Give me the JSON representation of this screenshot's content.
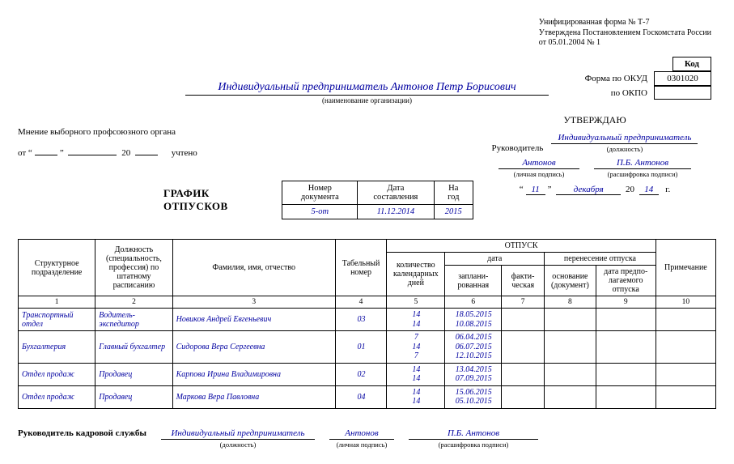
{
  "form_header": {
    "line1": "Унифицированная форма № Т-7",
    "line2": "Утверждена Постановлением Госкомстата России",
    "line3": "от 05.01.2004 № 1"
  },
  "codes": {
    "header": "Код",
    "okud_label": "Форма по ОКУД",
    "okud_value": "0301020",
    "okpo_label": "по ОКПО",
    "okpo_value": ""
  },
  "org": {
    "name": "Индивидуальный предприниматель Антонов Петр Борисович",
    "sub": "(наименование организации)"
  },
  "mnenie": {
    "header": "Мнение выборного профсоюзного органа",
    "ot": "от",
    "twenty": "20",
    "uchteno": "учтено"
  },
  "approve": {
    "title": "УТВЕРЖДАЮ",
    "leader_label": "Руководитель",
    "position": "Индивидуальный предприниматель",
    "position_sub": "(должность)",
    "surname": "Антонов",
    "surname_sub": "(личная подпись)",
    "name": "П.Б. Антонов",
    "name_sub": "(расшифровка подписи)",
    "day": "11",
    "month": "декабря",
    "year_prefix": "20",
    "year": "14",
    "g": "г."
  },
  "doc": {
    "title": "ГРАФИК ОТПУСКОВ",
    "num_header": "Номер документа",
    "date_header": "Дата составления",
    "year_header": "На год",
    "num_value": "5-от",
    "date_value": "11.12.2014",
    "year_value": "2015"
  },
  "table": {
    "headers": {
      "dept": "Структурное подразделение",
      "position": "Должность (специальность, профессия) по штатному расписанию",
      "fio": "Фамилия, имя, отчество",
      "tabnum": "Табельный номер",
      "vacation": "ОТПУСК",
      "days": "количество календарных дней",
      "date": "дата",
      "planned": "заплани-рованная",
      "actual": "факти-ческая",
      "transfer": "перенесение отпуска",
      "basis": "основание (документ)",
      "newdate": "дата предпо-лагаемого отпуска",
      "note": "Примечание"
    },
    "rows": [
      {
        "dept": "Транспортный отдел",
        "position": "Водитель-экспедитор",
        "fio": "Новиков Андрей Евгеньевич",
        "tabnum": "03",
        "days": [
          "14",
          "14"
        ],
        "dates": [
          "18.05.2015",
          "10.08.2015"
        ]
      },
      {
        "dept": "Бухгалтерия",
        "position": "Главный бухгалтер",
        "fio": "Сидорова Вера Сергеевна",
        "tabnum": "01",
        "days": [
          "7",
          "14",
          "7"
        ],
        "dates": [
          "06.04.2015",
          "06.07.2015",
          "12.10.2015"
        ]
      },
      {
        "dept": "Отдел продаж",
        "position": "Продавец",
        "fio": "Карпова Ирина Владимировна",
        "tabnum": "02",
        "days": [
          "14",
          "14"
        ],
        "dates": [
          "13.04.2015",
          "07.09.2015"
        ]
      },
      {
        "dept": "Отдел продаж",
        "position": "Продавец",
        "fio": "Маркова Вера Павловна",
        "tabnum": "04",
        "days": [
          "14",
          "14"
        ],
        "dates": [
          "15.06.2015",
          "05.10.2015"
        ]
      }
    ]
  },
  "footer": {
    "label": "Руководитель кадровой службы",
    "position": "Индивидуальный предприниматель",
    "position_sub": "(должность)",
    "sign": "Антонов",
    "sign_sub": "(личная подпись)",
    "name": "П.Б. Антонов",
    "name_sub": "(расшифровка подписи)"
  }
}
